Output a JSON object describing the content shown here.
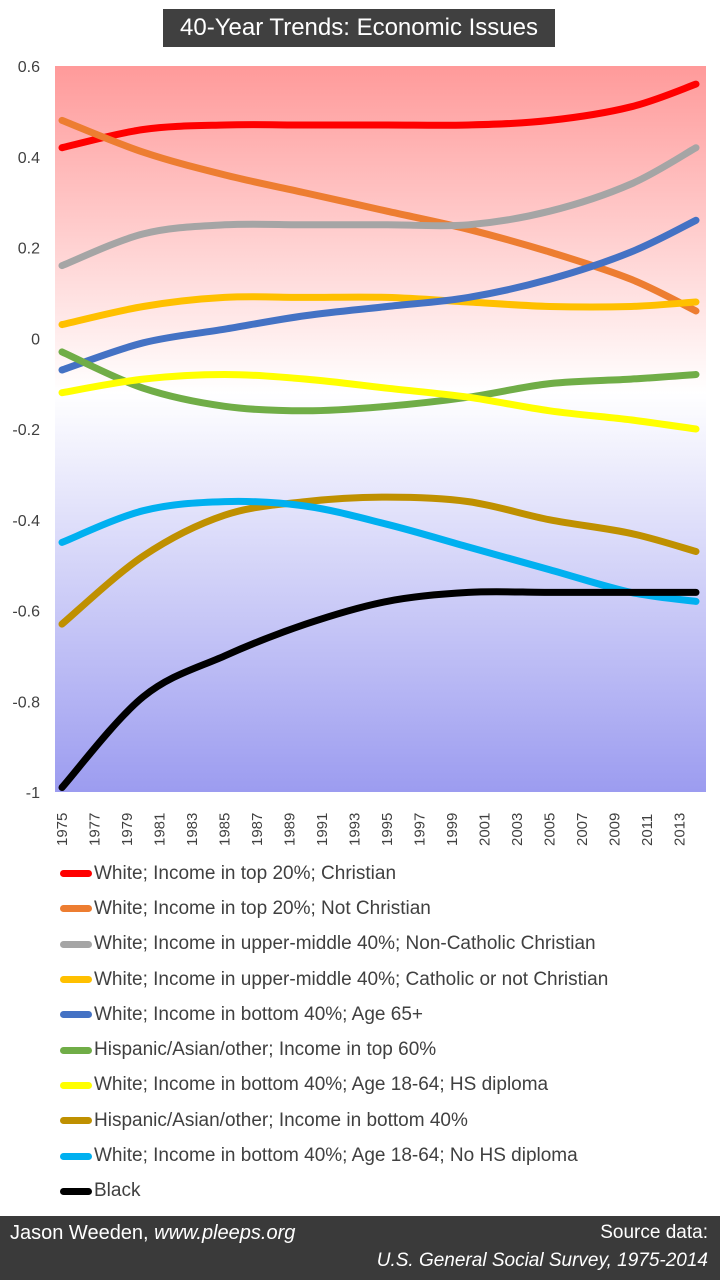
{
  "title": "40-Year Trends: Economic Issues",
  "footer": {
    "author": "Jason Weeden, ",
    "site": "www.pleeps.org",
    "source_label": "Source data:",
    "source_name": "U.S. General Social Survey, 1975-2014"
  },
  "chart_data": {
    "type": "line",
    "ylim": [
      -1,
      0.6
    ],
    "yticks": [
      0.6,
      0.4,
      0.2,
      0,
      -0.2,
      -0.4,
      -0.6,
      -0.8,
      -1
    ],
    "ytick_labels": [
      "0.6",
      "0.4",
      "0.2",
      "0",
      "-0.2",
      "-0.4",
      "-0.6",
      "-0.8",
      "-1"
    ],
    "xticks": [
      1975,
      1977,
      1979,
      1981,
      1983,
      1985,
      1987,
      1989,
      1991,
      1993,
      1995,
      1997,
      1999,
      2001,
      2003,
      2005,
      2007,
      2009,
      2011,
      2013
    ],
    "x": [
      1975,
      1980,
      1985,
      1990,
      1995,
      2000,
      2005,
      2010,
      2014
    ],
    "background": "gradient from red at top to blue at bottom",
    "legend_position": "bottom",
    "series": [
      {
        "name": "White; Income in top 20%; Christian",
        "color": "#ff0000",
        "values": [
          0.42,
          0.46,
          0.47,
          0.47,
          0.47,
          0.47,
          0.48,
          0.51,
          0.56
        ]
      },
      {
        "name": "White; Income in top 20%; Not Christian",
        "color": "#ed7d31",
        "values": [
          0.48,
          0.41,
          0.36,
          0.32,
          0.28,
          0.24,
          0.19,
          0.13,
          0.06
        ]
      },
      {
        "name": "White; Income in upper-middle 40%; Non-Catholic Christian",
        "color": "#a5a5a5",
        "values": [
          0.16,
          0.23,
          0.25,
          0.25,
          0.25,
          0.25,
          0.28,
          0.34,
          0.42
        ]
      },
      {
        "name": "White; Income in upper-middle 40%; Catholic or not Christian",
        "color": "#ffc000",
        "values": [
          0.03,
          0.07,
          0.09,
          0.09,
          0.09,
          0.08,
          0.07,
          0.07,
          0.08
        ]
      },
      {
        "name": "White; Income in bottom 40%; Age 65+",
        "color": "#4472c4",
        "values": [
          -0.07,
          -0.01,
          0.02,
          0.05,
          0.07,
          0.09,
          0.13,
          0.19,
          0.26
        ]
      },
      {
        "name": "Hispanic/Asian/other; Income in top 60%",
        "color": "#70ad47",
        "values": [
          -0.03,
          -0.11,
          -0.15,
          -0.16,
          -0.15,
          -0.13,
          -0.1,
          -0.09,
          -0.08
        ]
      },
      {
        "name": "White; Income in bottom 40%; Age 18-64; HS diploma",
        "color": "#ffff00",
        "values": [
          -0.12,
          -0.09,
          -0.08,
          -0.09,
          -0.11,
          -0.13,
          -0.16,
          -0.18,
          -0.2
        ]
      },
      {
        "name": "Hispanic/Asian/other; Income in bottom 40%",
        "color": "#bf9000",
        "values": [
          -0.63,
          -0.48,
          -0.39,
          -0.36,
          -0.35,
          -0.36,
          -0.4,
          -0.43,
          -0.47
        ]
      },
      {
        "name": "White; Income in bottom 40%; Age 18-64; No HS diploma",
        "color": "#00b0f0",
        "values": [
          -0.45,
          -0.38,
          -0.36,
          -0.37,
          -0.41,
          -0.46,
          -0.51,
          -0.56,
          -0.58
        ]
      },
      {
        "name": "Black",
        "color": "#000000",
        "values": [
          -0.99,
          -0.79,
          -0.7,
          -0.63,
          -0.58,
          -0.56,
          -0.56,
          -0.56,
          -0.56
        ]
      }
    ]
  }
}
